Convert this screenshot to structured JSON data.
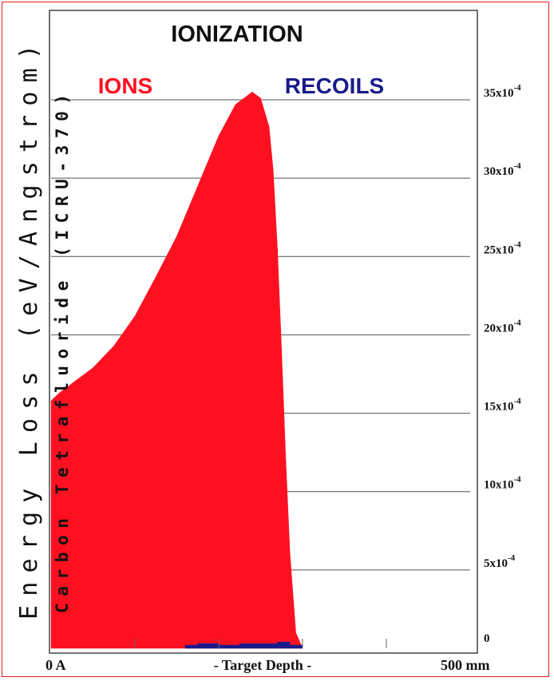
{
  "chart_data": {
    "type": "area",
    "title": "IONIZATION",
    "ylabel": "Energy Loss (eV/Angstrom)",
    "xlabel": "- Target Depth -",
    "target_label": "Carbon Tetrafluoride (ICRU-370)",
    "legend": [
      {
        "label": "IONS",
        "color": "#ff1020"
      },
      {
        "label": "RECOILS",
        "color": "#1a1a8c"
      }
    ],
    "x_tick_labels": [
      "0 A",
      "500 mm"
    ],
    "x_range": [
      0,
      500
    ],
    "x_unit": "mm",
    "y_range": [
      0,
      0.0035
    ],
    "y_ticks": [
      {
        "value": 0,
        "mantissa": "0",
        "exp": ""
      },
      {
        "value": 0.0005,
        "mantissa": "5x10",
        "exp": "-4"
      },
      {
        "value": 0.001,
        "mantissa": "10x10",
        "exp": "-4"
      },
      {
        "value": 0.0015,
        "mantissa": "15x10",
        "exp": "-4"
      },
      {
        "value": 0.002,
        "mantissa": "20x10",
        "exp": "-4"
      },
      {
        "value": 0.0025,
        "mantissa": "25x10",
        "exp": "-4"
      },
      {
        "value": 0.003,
        "mantissa": "30x10",
        "exp": "-4"
      },
      {
        "value": 0.0035,
        "mantissa": "35x10",
        "exp": "-4"
      }
    ],
    "grid": true,
    "series": [
      {
        "name": "IONS",
        "color": "#ff1020",
        "x": [
          0,
          10,
          25,
          50,
          75,
          100,
          125,
          150,
          175,
          200,
          220,
          240,
          250,
          260,
          265,
          270,
          275,
          280,
          285,
          292,
          300,
          310,
          320,
          330,
          340,
          350,
          360,
          370,
          380,
          390,
          400,
          410,
          420,
          430,
          440,
          450,
          460,
          470,
          480,
          490,
          500
        ],
        "values": [
          0.00158,
          0.00163,
          0.00169,
          0.00179,
          0.00193,
          0.00212,
          0.00237,
          0.00263,
          0.00295,
          0.00327,
          0.00347,
          0.00355,
          0.00351,
          0.00333,
          0.00305,
          0.00255,
          0.0019,
          0.0012,
          0.0006,
          0.0001,
          0,
          0,
          0,
          0,
          0,
          0,
          0,
          0,
          0,
          0,
          0,
          0,
          0,
          0,
          0,
          0,
          0,
          0,
          0,
          0,
          0
        ]
      },
      {
        "name": "RECOILS",
        "color": "#1a1a8c",
        "x": [
          0,
          50,
          100,
          150,
          160,
          175,
          200,
          225,
          250,
          270,
          285,
          300,
          320,
          500
        ],
        "values": [
          0,
          0,
          0,
          0,
          1e-05,
          2e-05,
          1e-05,
          2e-05,
          2e-05,
          3e-05,
          1e-05,
          0,
          0,
          0
        ]
      }
    ]
  }
}
